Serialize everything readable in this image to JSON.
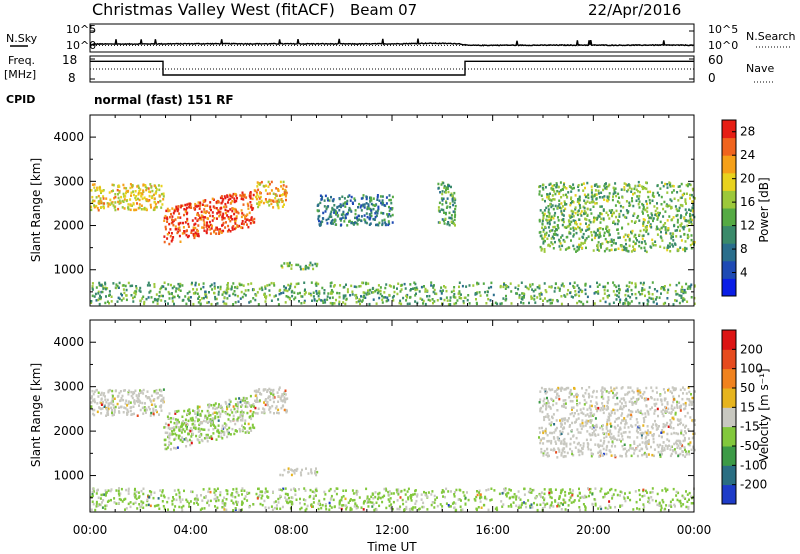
{
  "header": {
    "title": "Christmas Valley West (fitACF)",
    "beam": "Beam 07",
    "date": "22/Apr/2016"
  },
  "status_panels": {
    "nsky_label": "N.Sky",
    "nsearch_label": "N.Search",
    "noise_ticks": [
      "10^5",
      "10^0"
    ],
    "freq_label": "Freq.",
    "freq_unit": "[MHz]",
    "freq_ticks": [
      "18",
      "8"
    ],
    "nave_label": "Nave",
    "nave_ticks": [
      "60",
      "0"
    ],
    "cpid_label": "CPID",
    "cpid_text": "normal (fast) 151 RF"
  },
  "colors": {
    "power_scale": [
      "#0a1ee6",
      "#1e4ab4",
      "#2a6e8c",
      "#3a8a6a",
      "#55aa44",
      "#9cc83a",
      "#e8d21e",
      "#f5a019",
      "#f0641e",
      "#e61e14"
    ],
    "velocity_scale": [
      "#1e3cc8",
      "#2a6e82",
      "#3c9a46",
      "#82c83c",
      "#c8c8c0",
      "#e6b41e",
      "#f0821e",
      "#e64b1e",
      "#dc1414"
    ]
  },
  "chart_data": [
    {
      "type": "line",
      "panel": "noise",
      "title": "",
      "xlabel": "",
      "ylabel": "N.Sky",
      "ylabel_right": "N.Search",
      "xlim": [
        "00:00",
        "24:00"
      ],
      "yscale": "log",
      "ylim": [
        1,
        100000
      ],
      "series": [
        {
          "x": [
            0,
            0.1,
            0.2,
            1.5,
            3.0,
            4.5,
            6.0,
            7.5,
            9.0,
            10.5,
            12.0,
            13.4,
            14.6,
            15.0,
            16.5,
            18.0,
            19.5,
            21.0,
            22.5,
            24.0
          ],
          "y": [
            5,
            20,
            22,
            22,
            24,
            25,
            25,
            24,
            24,
            23,
            24,
            30,
            27,
            12,
            13,
            13,
            14,
            13,
            14,
            13
          ]
        },
        {
          "x": [
            0,
            24
          ],
          "y": [
            12,
            12
          ]
        }
      ]
    },
    {
      "type": "line",
      "panel": "frequency",
      "title": "",
      "xlabel": "",
      "ylabel": "Freq. [MHz]",
      "ylabel_right": "Nave",
      "xlim": [
        "00:00",
        "24:00"
      ],
      "ylim": [
        8,
        18
      ],
      "y2lim": [
        0,
        60
      ],
      "series": [
        {
          "x": [
            0,
            2.9,
            2.9,
            14.9,
            14.9,
            24
          ],
          "y": [
            16.2,
            16.2,
            10.5,
            10.5,
            16.2,
            16.2
          ]
        },
        {
          "x": [
            0,
            24
          ],
          "y": [
            13.0,
            13.0
          ]
        }
      ]
    },
    {
      "type": "heatmap",
      "panel": "power",
      "title": "",
      "xlabel": "",
      "ylabel": "Slant Range [km]",
      "colorbar_label": "Power [dB]",
      "colorbar_ticks": [
        4,
        8,
        12,
        16,
        20,
        24,
        28
      ],
      "zlim": [
        0,
        30
      ],
      "xlim": [
        "00:00",
        "24:00"
      ],
      "ylim": [
        180,
        4500
      ],
      "yticks": [
        1000,
        2000,
        3000,
        4000
      ],
      "features": [
        {
          "t": [
            0.0,
            2.9
          ],
          "r": [
            2350,
            2950
          ],
          "z": 20
        },
        {
          "t": [
            2.9,
            6.5
          ],
          "r": [
            1550,
            2400
          ],
          "z": 27
        },
        {
          "t": [
            6.5,
            7.8
          ],
          "r": [
            2400,
            3000
          ],
          "z": 21
        },
        {
          "t": [
            7.5,
            9.0
          ],
          "r": [
            1000,
            1150
          ],
          "z": 14
        },
        {
          "t": [
            9.0,
            12.0
          ],
          "r": [
            2000,
            2700
          ],
          "z": 9
        },
        {
          "t": [
            13.8,
            14.5
          ],
          "r": [
            2000,
            3000
          ],
          "z": 12
        },
        {
          "t": [
            17.8,
            24.0
          ],
          "r": [
            1400,
            3000
          ],
          "z": 14
        },
        {
          "t": [
            0.0,
            24.0
          ],
          "r": [
            200,
            700
          ],
          "z": 13
        }
      ]
    },
    {
      "type": "heatmap",
      "panel": "velocity",
      "title": "",
      "xlabel": "Time UT",
      "ylabel": "Slant Range [km]",
      "colorbar_label": "Velocity [m s⁻¹]",
      "colorbar_ticks": [
        -200,
        -100,
        -50,
        -15,
        15,
        50,
        100,
        200
      ],
      "zlim": [
        -250,
        250
      ],
      "xlim": [
        "00:00",
        "24:00"
      ],
      "xticks": [
        "00:00",
        "04:00",
        "08:00",
        "12:00",
        "16:00",
        "20:00",
        "00:00"
      ],
      "ylim": [
        180,
        4500
      ],
      "yticks": [
        1000,
        2000,
        3000,
        4000
      ],
      "features": [
        {
          "t": [
            0.0,
            2.9
          ],
          "r": [
            2350,
            2950
          ],
          "z": 0
        },
        {
          "t": [
            2.9,
            6.5
          ],
          "r": [
            1550,
            2400
          ],
          "z": -30
        },
        {
          "t": [
            6.5,
            7.8
          ],
          "r": [
            2400,
            3000
          ],
          "z": 0
        },
        {
          "t": [
            7.5,
            9.0
          ],
          "r": [
            1000,
            1150
          ],
          "z": 0
        },
        {
          "t": [
            17.8,
            24.0
          ],
          "r": [
            1400,
            3000
          ],
          "z": 0
        },
        {
          "t": [
            0.0,
            24.0
          ],
          "r": [
            200,
            700
          ],
          "z": -40
        }
      ]
    }
  ]
}
